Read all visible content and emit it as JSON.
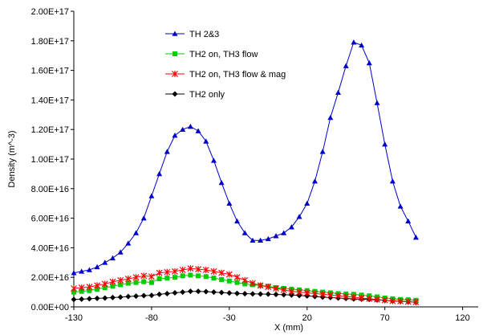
{
  "chart_data": {
    "type": "line",
    "title": "",
    "xlabel": "X (mm)",
    "ylabel": "Density (m^-3)",
    "xlim": [
      -130,
      130
    ],
    "ylim": [
      0,
      2e+17
    ],
    "x_ticks": [
      -130,
      -80,
      -30,
      20,
      70,
      120
    ],
    "y_ticks": [
      0,
      2e+16,
      4e+16,
      6e+16,
      8e+16,
      1e+17,
      1.2e+17,
      1.4e+17,
      1.6e+17,
      1.8e+17,
      2e+17
    ],
    "x_tick_labels": [
      "-130",
      "-80",
      "-30",
      "20",
      "70",
      "120"
    ],
    "y_tick_labels": [
      "0.00E+00",
      "2.00E+16",
      "4.00E+16",
      "6.00E+16",
      "8.00E+16",
      "1.00E+17",
      "1.20E+17",
      "1.40E+17",
      "1.60E+17",
      "1.80E+17",
      "2.00E+17"
    ],
    "grid": false,
    "legend_position": "top-left",
    "x": [
      -130,
      -125,
      -120,
      -115,
      -110,
      -105,
      -100,
      -95,
      -90,
      -85,
      -80,
      -75,
      -70,
      -65,
      -60,
      -55,
      -50,
      -45,
      -40,
      -35,
      -30,
      -25,
      -20,
      -15,
      -10,
      -5,
      0,
      5,
      10,
      15,
      20,
      25,
      30,
      35,
      40,
      45,
      50,
      55,
      60,
      65,
      70,
      75,
      80,
      85,
      90,
      95,
      100
    ],
    "series": [
      {
        "name": "TH 2&3",
        "color": "#0000cc",
        "marker": "triangle",
        "values": [
          2.3e+16,
          2.4e+16,
          2.5e+16,
          2.7e+16,
          3e+16,
          3.3e+16,
          3.7e+16,
          4.3e+16,
          5e+16,
          6e+16,
          7.5e+16,
          9e+16,
          1.05e+17,
          1.16e+17,
          1.2e+17,
          1.22e+17,
          1.19e+17,
          1.12e+17,
          9.9e+16,
          8.4e+16,
          7e+16,
          5.8e+16,
          5e+16,
          4.5e+16,
          4.5e+16,
          4.6e+16,
          4.8e+16,
          5e+16,
          5.4e+16,
          6.1e+16,
          7e+16,
          8.5e+16,
          1.05e+17,
          1.28e+17,
          1.45e+17,
          1.63e+17,
          1.79e+17,
          1.77e+17,
          1.65e+17,
          1.38e+17,
          1.1e+17,
          8.5e+16,
          6.8e+16,
          5.8e+16,
          4.7e+16,
          null,
          null
        ]
      },
      {
        "name": "TH2 on, TH3 flow",
        "color": "#00cc00",
        "marker": "square",
        "values": [
          1e+16,
          1.05e+16,
          1.1e+16,
          1.2e+16,
          1.3e+16,
          1.4e+16,
          1.5e+16,
          1.6e+16,
          1.65e+16,
          1.7e+16,
          1.65e+16,
          1.9e+16,
          1.95e+16,
          2e+16,
          2.1e+16,
          2.15e+16,
          2.1e+16,
          2.05e+16,
          1.95e+16,
          1.85e+16,
          1.75e+16,
          1.65e+16,
          1.55e+16,
          1.5e+16,
          1.45e+16,
          1.4e+16,
          1.3e+16,
          1.25e+16,
          1.2e+16,
          1.15e+16,
          1.1e+16,
          1.05e+16,
          1e+16,
          9500000000000000.0,
          9000000000000000.0,
          8800000000000000.0,
          8500000000000000.0,
          8000000000000000.0,
          7500000000000000.0,
          6800000000000000.0,
          6000000000000000.0,
          5500000000000000.0,
          5000000000000000.0,
          4800000000000000.0,
          4500000000000000.0,
          null,
          null
        ]
      },
      {
        "name": "TH2 on, TH3 flow & mag",
        "color": "#ff0000",
        "marker": "star",
        "values": [
          1.25e+16,
          1.3e+16,
          1.35e+16,
          1.45e+16,
          1.55e+16,
          1.7e+16,
          1.8e+16,
          1.9e+16,
          2e+16,
          2.1e+16,
          2.05e+16,
          2.3e+16,
          2.35e+16,
          2.4e+16,
          2.5e+16,
          2.6e+16,
          2.55e+16,
          2.5e+16,
          2.4e+16,
          2.3e+16,
          2.2e+16,
          2e+16,
          1.8e+16,
          1.6e+16,
          1.45e+16,
          1.35e+16,
          1.25e+16,
          1.15e+16,
          1.05e+16,
          1e+16,
          9500000000000000.0,
          9000000000000000.0,
          8500000000000000.0,
          8000000000000000.0,
          7500000000000000.0,
          7000000000000000.0,
          6500000000000000.0,
          6000000000000000.0,
          5500000000000000.0,
          5000000000000000.0,
          4500000000000000.0,
          4000000000000000.0,
          3800000000000000.0,
          3500000000000000.0,
          3200000000000000.0,
          null,
          null
        ]
      },
      {
        "name": "TH2 only",
        "color": "#000000",
        "marker": "diamond",
        "values": [
          5000000000000000.0,
          5200000000000000.0,
          5500000000000000.0,
          5800000000000000.0,
          6000000000000000.0,
          6300000000000000.0,
          6600000000000000.0,
          7000000000000000.0,
          7300000000000000.0,
          7600000000000000.0,
          7800000000000000.0,
          8500000000000000.0,
          9000000000000000.0,
          9500000000000000.0,
          1e+16,
          1.05e+16,
          1.05e+16,
          1.03e+16,
          1e+16,
          9700000000000000.0,
          9400000000000000.0,
          9100000000000000.0,
          8900000000000000.0,
          8800000000000000.0,
          8700000000000000.0,
          8600000000000000.0,
          8400000000000000.0,
          8200000000000000.0,
          8000000000000000.0,
          7700000000000000.0,
          7400000000000000.0,
          7000000000000000.0,
          6600000000000000.0,
          6300000000000000.0,
          6000000000000000.0,
          5700000000000000.0,
          5400000000000000.0,
          5200000000000000.0,
          5000000000000000.0,
          4700000000000000.0,
          4400000000000000.0,
          4100000000000000.0,
          3800000000000000.0,
          3500000000000000.0,
          3200000000000000.0,
          null,
          null
        ]
      }
    ]
  }
}
